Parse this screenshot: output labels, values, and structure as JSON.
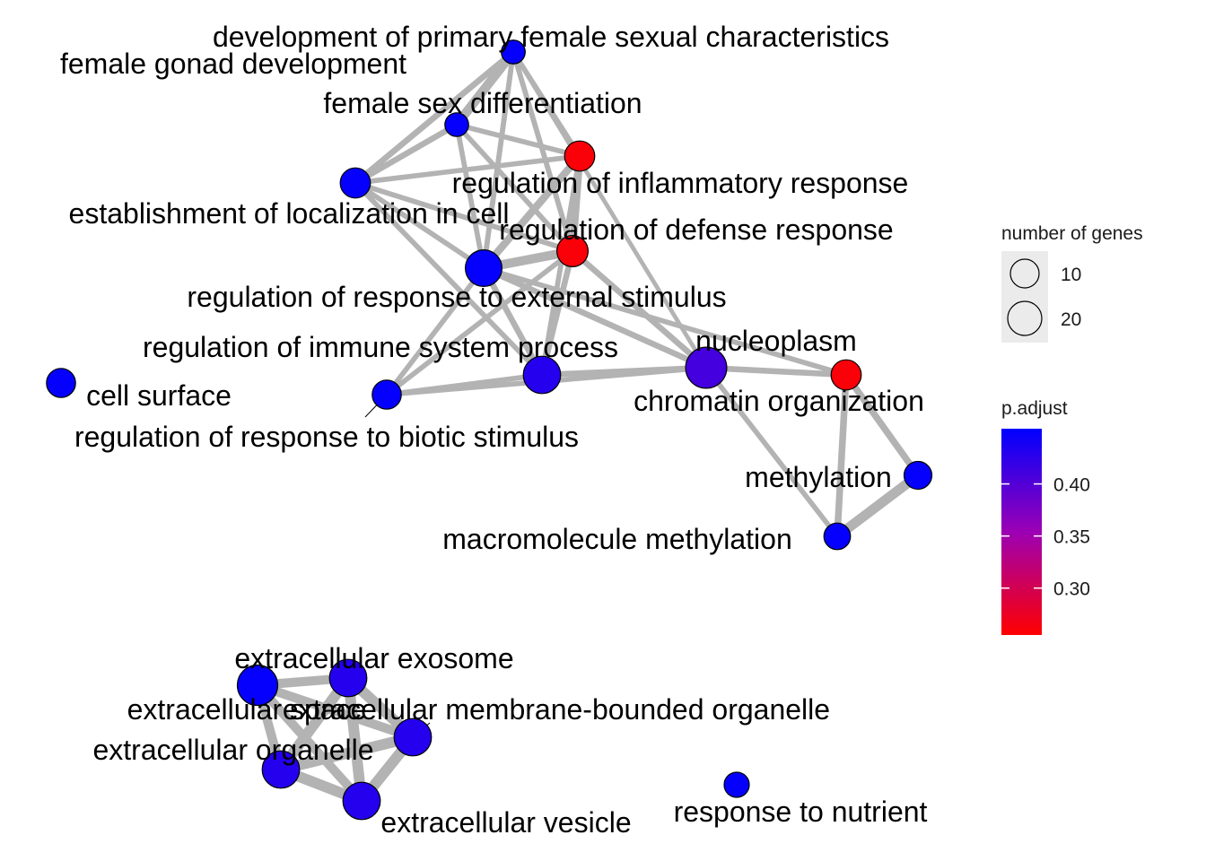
{
  "network": {
    "nodes": [
      {
        "id": "dev_primary_female",
        "label": "development of primary female sexual characteristics",
        "p_adjust": 0.45,
        "genes": 4
      },
      {
        "id": "female_gonad",
        "label": "female gonad development",
        "p_adjust": 0.45,
        "genes": 4
      },
      {
        "id": "female_sex_diff",
        "label": "female sex differentiation",
        "p_adjust": 0.45,
        "genes": 4
      },
      {
        "id": "reg_inflammatory",
        "label": "regulation of inflammatory response",
        "p_adjust": 0.26,
        "genes": 9
      },
      {
        "id": "establishment_loc",
        "label": "establishment of localization in cell",
        "p_adjust": 0.45,
        "genes": 9
      },
      {
        "id": "reg_defense",
        "label": "regulation of defense response",
        "p_adjust": 0.26,
        "genes": 10
      },
      {
        "id": "reg_external",
        "label": "regulation of response to external stimulus",
        "p_adjust": 0.45,
        "genes": 16
      },
      {
        "id": "reg_immune",
        "label": "regulation of immune system process",
        "p_adjust": 0.43,
        "genes": 17
      },
      {
        "id": "nucleoplasm",
        "label": "nucleoplasm",
        "p_adjust": 0.41,
        "genes": 22
      },
      {
        "id": "chromatin_org",
        "label": "chromatin organization",
        "p_adjust": 0.26,
        "genes": 9
      },
      {
        "id": "cell_surface",
        "label": "cell surface",
        "p_adjust": 0.45,
        "genes": 8
      },
      {
        "id": "reg_biotic",
        "label": "regulation of response to biotic stimulus",
        "p_adjust": 0.45,
        "genes": 8
      },
      {
        "id": "methylation",
        "label": "methylation",
        "p_adjust": 0.45,
        "genes": 7
      },
      {
        "id": "macro_methylation",
        "label": "macromolecule methylation",
        "p_adjust": 0.45,
        "genes": 6
      },
      {
        "id": "ec_space",
        "label": "extracellular space",
        "p_adjust": 0.45,
        "genes": 21
      },
      {
        "id": "ec_exosome",
        "label": "extracellular exosome",
        "p_adjust": 0.43,
        "genes": 17
      },
      {
        "id": "ec_membrane_organelle",
        "label": "extracellular membrane-bounded organelle",
        "p_adjust": 0.43,
        "genes": 17
      },
      {
        "id": "ec_organelle",
        "label": "extracellular organelle",
        "p_adjust": 0.43,
        "genes": 17
      },
      {
        "id": "ec_vesicle",
        "label": "extracellular vesicle",
        "p_adjust": 0.43,
        "genes": 17
      },
      {
        "id": "response_nutrient",
        "label": "response to nutrient",
        "p_adjust": 0.45,
        "genes": 5
      }
    ],
    "edges": [
      {
        "source": "dev_primary_female",
        "target": "female_gonad",
        "weight": 0.9
      },
      {
        "source": "dev_primary_female",
        "target": "female_sex_diff",
        "weight": 0.8
      },
      {
        "source": "female_gonad",
        "target": "female_sex_diff",
        "weight": 0.8
      },
      {
        "source": "dev_primary_female",
        "target": "establishment_loc",
        "weight": 0.4
      },
      {
        "source": "female_gonad",
        "target": "establishment_loc",
        "weight": 0.4
      },
      {
        "source": "female_sex_diff",
        "target": "establishment_loc",
        "weight": 0.4
      },
      {
        "source": "dev_primary_female",
        "target": "reg_inflammatory",
        "weight": 0.3
      },
      {
        "source": "female_gonad",
        "target": "reg_inflammatory",
        "weight": 0.3
      },
      {
        "source": "female_sex_diff",
        "target": "reg_inflammatory",
        "weight": 0.3
      },
      {
        "source": "dev_primary_female",
        "target": "reg_defense",
        "weight": 0.3
      },
      {
        "source": "female_gonad",
        "target": "reg_defense",
        "weight": 0.3
      },
      {
        "source": "female_sex_diff",
        "target": "reg_defense",
        "weight": 0.3
      },
      {
        "source": "dev_primary_female",
        "target": "reg_external",
        "weight": 0.3
      },
      {
        "source": "female_gonad",
        "target": "reg_external",
        "weight": 0.3
      },
      {
        "source": "female_sex_diff",
        "target": "reg_external",
        "weight": 0.3
      },
      {
        "source": "dev_primary_female",
        "target": "nucleoplasm",
        "weight": 0.2
      },
      {
        "source": "establishment_loc",
        "target": "reg_inflammatory",
        "weight": 0.3
      },
      {
        "source": "establishment_loc",
        "target": "reg_defense",
        "weight": 0.3
      },
      {
        "source": "establishment_loc",
        "target": "reg_external",
        "weight": 0.3
      },
      {
        "source": "establishment_loc",
        "target": "reg_immune",
        "weight": 0.3
      },
      {
        "source": "reg_inflammatory",
        "target": "reg_defense",
        "weight": 0.6
      },
      {
        "source": "reg_inflammatory",
        "target": "reg_external",
        "weight": 0.6
      },
      {
        "source": "reg_inflammatory",
        "target": "reg_immune",
        "weight": 0.3
      },
      {
        "source": "reg_defense",
        "target": "reg_external",
        "weight": 0.8
      },
      {
        "source": "reg_defense",
        "target": "reg_immune",
        "weight": 0.4
      },
      {
        "source": "reg_defense",
        "target": "reg_biotic",
        "weight": 0.3
      },
      {
        "source": "reg_defense",
        "target": "nucleoplasm",
        "weight": 0.4
      },
      {
        "source": "reg_external",
        "target": "reg_immune",
        "weight": 0.4
      },
      {
        "source": "reg_external",
        "target": "reg_biotic",
        "weight": 0.3
      },
      {
        "source": "reg_external",
        "target": "nucleoplasm",
        "weight": 0.4
      },
      {
        "source": "reg_external",
        "target": "chromatin_org",
        "weight": 0.3
      },
      {
        "source": "reg_immune",
        "target": "reg_biotic",
        "weight": 0.3
      },
      {
        "source": "reg_immune",
        "target": "nucleoplasm",
        "weight": 0.4
      },
      {
        "source": "reg_biotic",
        "target": "nucleoplasm",
        "weight": 0.3
      },
      {
        "source": "nucleoplasm",
        "target": "chromatin_org",
        "weight": 0.4
      },
      {
        "source": "nucleoplasm",
        "target": "macro_methylation",
        "weight": 0.3
      },
      {
        "source": "chromatin_org",
        "target": "methylation",
        "weight": 0.5
      },
      {
        "source": "chromatin_org",
        "target": "macro_methylation",
        "weight": 0.5
      },
      {
        "source": "methylation",
        "target": "macro_methylation",
        "weight": 0.9
      },
      {
        "source": "ec_space",
        "target": "ec_exosome",
        "weight": 0.8
      },
      {
        "source": "ec_space",
        "target": "ec_membrane_organelle",
        "weight": 0.8
      },
      {
        "source": "ec_space",
        "target": "ec_organelle",
        "weight": 0.8
      },
      {
        "source": "ec_space",
        "target": "ec_vesicle",
        "weight": 0.8
      },
      {
        "source": "ec_exosome",
        "target": "ec_membrane_organelle",
        "weight": 1.0
      },
      {
        "source": "ec_exosome",
        "target": "ec_organelle",
        "weight": 1.0
      },
      {
        "source": "ec_exosome",
        "target": "ec_vesicle",
        "weight": 1.0
      },
      {
        "source": "ec_membrane_organelle",
        "target": "ec_organelle",
        "weight": 1.0
      },
      {
        "source": "ec_membrane_organelle",
        "target": "ec_vesicle",
        "weight": 1.0
      },
      {
        "source": "ec_organelle",
        "target": "ec_vesicle",
        "weight": 1.0
      }
    ]
  },
  "legend": {
    "size_title": "number of genes",
    "size_items": [
      {
        "label": "10",
        "genes": 10
      },
      {
        "label": "20",
        "genes": 20
      }
    ],
    "color_title": "p.adjust",
    "color_ticks": [
      {
        "label": "0.40",
        "value": 0.4
      },
      {
        "label": "0.35",
        "value": 0.35
      },
      {
        "label": "0.30",
        "value": 0.3
      }
    ],
    "color_range": [
      0.255,
      0.453
    ],
    "color_low": "#ff0000",
    "color_high": "#0000ff"
  }
}
